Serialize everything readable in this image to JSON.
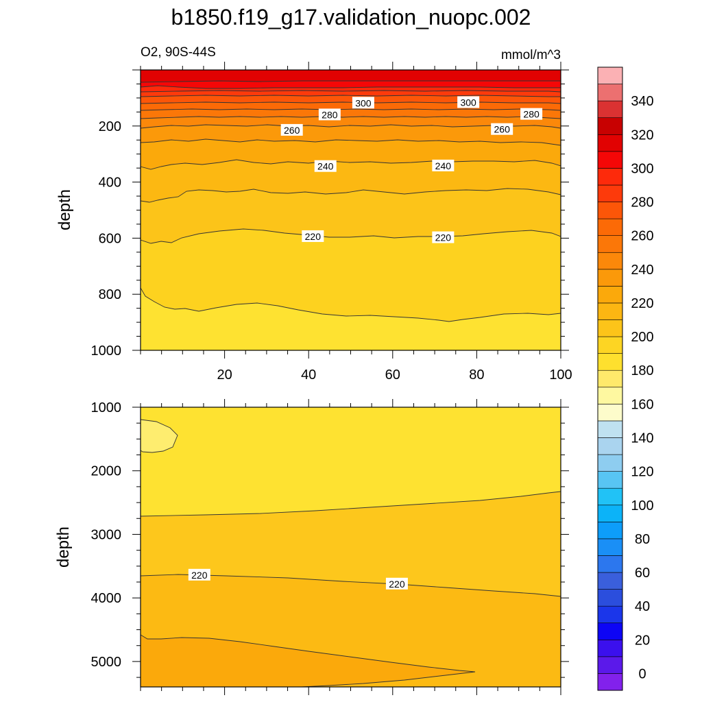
{
  "chart_data": {
    "type": "contour",
    "title": "b1850.f19_g17.validation_nuopc.002",
    "variable_label": "O2, 90S-44S",
    "units": "mmol/m^3",
    "colorbar": {
      "tick_labels": [
        "0",
        "20",
        "40",
        "60",
        "80",
        "100",
        "120",
        "140",
        "160",
        "180",
        "200",
        "220",
        "240",
        "260",
        "280",
        "300",
        "320",
        "340"
      ],
      "colors": [
        "#8221ec",
        "#5b19ea",
        "#3b10ee",
        "#0d05f5",
        "#1b36ea",
        "#2b4edd",
        "#3a5fdc",
        "#2c77ee",
        "#1a8ff6",
        "#0d9dfa",
        "#0cb3f8",
        "#21c2f6",
        "#58c5f3",
        "#8ecdf0",
        "#aad4ef",
        "#bfe1f0",
        "#fdfccb",
        "#fef8a0",
        "#fee96b",
        "#fee02e",
        "#fdd523",
        "#fcc419",
        "#fcb612",
        "#fba90b",
        "#fb990a",
        "#fb880a",
        "#fb7708",
        "#fc6a06",
        "#fc5608",
        "#fd3a0b",
        "#fd2a0b",
        "#f50707",
        "#e10202",
        "#c80101",
        "#da3232",
        "#ec7070",
        "#fbb1b4"
      ]
    },
    "panels": [
      {
        "name": "upper",
        "ylabel": "depth",
        "x_ticks": [
          20,
          40,
          60,
          80,
          100
        ],
        "y_ticks": [
          200,
          400,
          600,
          800,
          1000
        ],
        "xlim": [
          0,
          100
        ],
        "ylim": [
          1000,
          0
        ],
        "contour_labels": [
          {
            "text": "300",
            "x": 53,
            "y": 118
          },
          {
            "text": "300",
            "x": 78,
            "y": 116
          },
          {
            "text": "280",
            "x": 45,
            "y": 160
          },
          {
            "text": "280",
            "x": 93,
            "y": 158
          },
          {
            "text": "260",
            "x": 36,
            "y": 215
          },
          {
            "text": "260",
            "x": 86,
            "y": 212
          },
          {
            "text": "240",
            "x": 44,
            "y": 344
          },
          {
            "text": "240",
            "x": 72,
            "y": 342
          },
          {
            "text": "220",
            "x": 41,
            "y": 594
          },
          {
            "text": "220",
            "x": 72,
            "y": 598
          }
        ]
      },
      {
        "name": "lower",
        "ylabel": "depth",
        "x_ticks": [],
        "y_ticks": [
          1000,
          2000,
          3000,
          4000,
          5000
        ],
        "xlim": [
          0,
          100
        ],
        "ylim": [
          5400,
          1000
        ],
        "contour_labels": [
          {
            "text": "220",
            "x": 14,
            "y": 3640
          },
          {
            "text": "220",
            "x": 61,
            "y": 3780
          }
        ]
      }
    ]
  }
}
